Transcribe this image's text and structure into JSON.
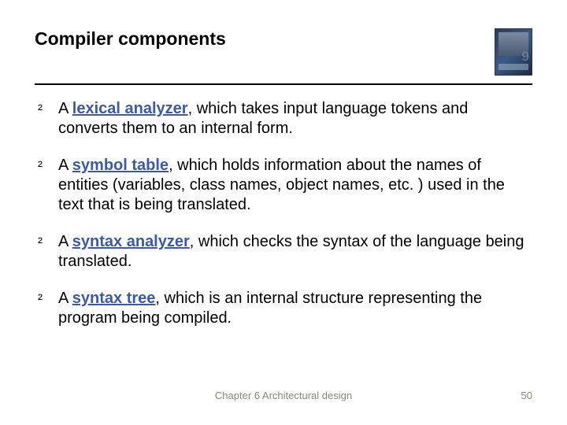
{
  "title": "Compiler components",
  "page_overlay": "9",
  "bullets": [
    {
      "prefix": "A ",
      "term": "lexical analyzer",
      "rest": ", which takes input language tokens and converts them to an internal form."
    },
    {
      "prefix": "A ",
      "term": "symbol table",
      "rest": ", which holds information about the names of entities (variables, class names, object names, etc. ) used in the text that is being translated."
    },
    {
      "prefix": "A ",
      "term": "syntax analyzer",
      "rest": ", which checks the syntax of the language being translated."
    },
    {
      "prefix": "A ",
      "term": "syntax tree",
      "rest": ", which is an internal structure representing the program being compiled."
    }
  ],
  "footer_center": "Chapter 6 Architectural design",
  "footer_page": "50",
  "bullet_glyph": "²",
  "colors": {
    "term": "#3b5aa6",
    "footer": "#8a8a78",
    "overlay": "#7a869a"
  }
}
